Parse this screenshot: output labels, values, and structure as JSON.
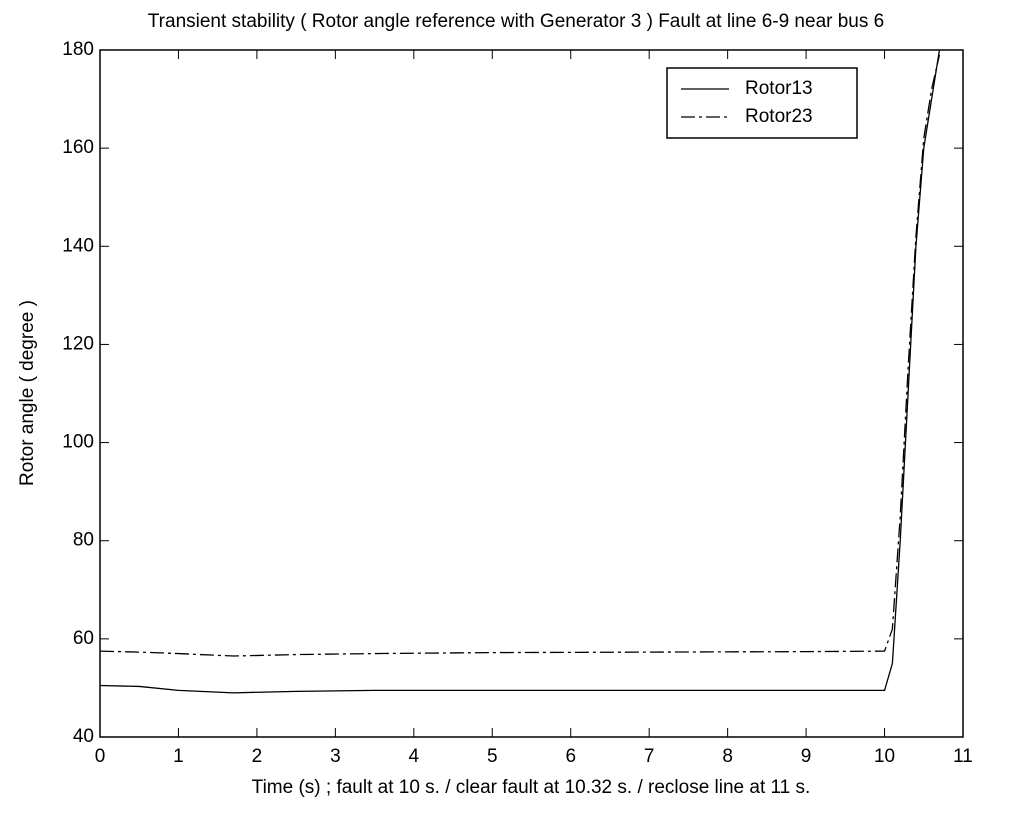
{
  "chart_data": {
    "type": "line",
    "title": "Transient stability ( Rotor angle reference with Generator 3 ) Fault at line 6-9 near bus 6",
    "x_label": "Time (s) ; fault at 10 s. / clear fault at 10.32 s. / reclose line at 11 s.",
    "y_label": "Rotor angle ( degree )",
    "x": [
      0,
      0.5,
      1,
      1.7,
      2.5,
      3.5,
      5,
      7,
      9,
      10,
      10.1,
      10.2,
      10.3,
      10.4,
      10.5,
      10.6,
      10.7
    ],
    "series": [
      {
        "name": "Rotor13",
        "color": "#000000",
        "dash": "solid",
        "values": [
          50.5,
          50.3,
          49.5,
          49,
          49.3,
          49.5,
          49.5,
          49.5,
          49.5,
          49.5,
          55,
          80,
          110,
          140,
          160,
          170,
          180
        ]
      },
      {
        "name": "Rotor23",
        "color": "#000000",
        "dash": "dashdot",
        "values": [
          57.5,
          57.3,
          57,
          56.5,
          56.8,
          57,
          57.2,
          57.3,
          57.4,
          57.5,
          62,
          85,
          115,
          142,
          162,
          172,
          179
        ]
      }
    ],
    "xlim": [
      0,
      11
    ],
    "xticks": [
      0,
      1,
      2,
      3,
      4,
      5,
      6,
      7,
      8,
      9,
      10,
      11
    ],
    "ylim": [
      40,
      180
    ],
    "yticks": [
      40,
      60,
      80,
      100,
      120,
      140,
      160,
      180
    ],
    "grid": false,
    "legend": "upper right"
  }
}
